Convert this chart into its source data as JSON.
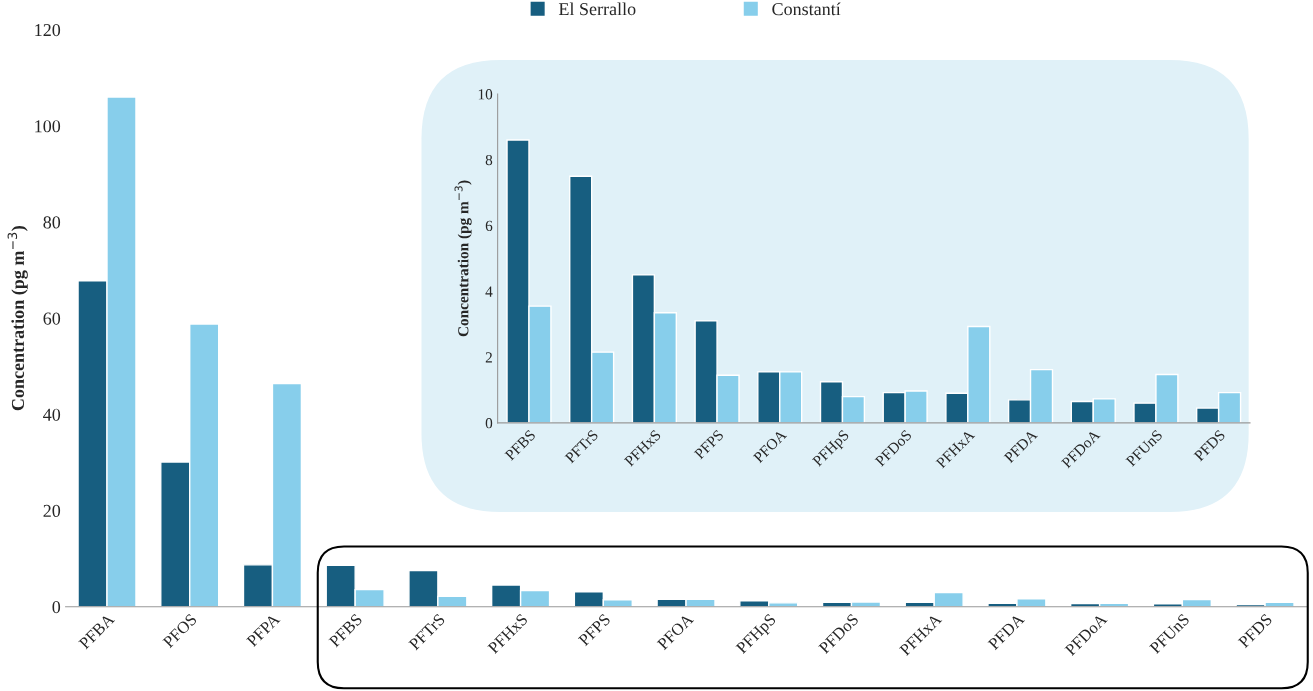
{
  "chart_data": [
    {
      "type": "bar",
      "ylabel": "Concentration (pg m$^{−3}$)",
      "categories": [
        "PFBA",
        "PFOS",
        "PFPA",
        "PFBS",
        "PFTrS",
        "PFHxS",
        "PFPS",
        "PFOA",
        "PFHpS",
        "PFDoS",
        "PFHxA",
        "PFDA",
        "PFDoA",
        "PFUnS",
        "PFDS"
      ],
      "series": [
        {
          "name": "El Serrallo",
          "color": "#175e80",
          "values": [
            67.8,
            30.1,
            8.7,
            8.6,
            7.5,
            4.5,
            3.1,
            1.55,
            1.25,
            0.92,
            0.9,
            0.7,
            0.65,
            0.6,
            0.45
          ]
        },
        {
          "name": "Constantí",
          "color": "#87ceeb",
          "values": [
            106,
            58.8,
            46.4,
            3.55,
            2.15,
            3.35,
            1.45,
            1.55,
            0.8,
            0.97,
            2.93,
            1.62,
            0.73,
            1.47,
            0.92
          ]
        }
      ],
      "ylim": [
        0,
        120
      ],
      "yticks": [
        0,
        20,
        40,
        60,
        80,
        100,
        120
      ],
      "legend": "top",
      "grid": false
    },
    {
      "type": "bar",
      "ylabel": "Concentration (pg m$^{−3}$)",
      "categories": [
        "PFBS",
        "PFTrS",
        "PFHxS",
        "PFPS",
        "PFOA",
        "PFHpS",
        "PFDoS",
        "PFHxA",
        "PFDA",
        "PFDoA",
        "PFUnS",
        "PFDS"
      ],
      "series": [
        {
          "color": "#175e80",
          "values": [
            8.6,
            7.5,
            4.5,
            3.1,
            1.55,
            1.25,
            0.92,
            0.9,
            0.7,
            0.65,
            0.6,
            0.45
          ]
        },
        {
          "color": "#87ceeb",
          "values": [
            3.55,
            2.15,
            3.35,
            1.45,
            1.55,
            0.8,
            0.97,
            2.93,
            1.62,
            0.73,
            1.47,
            0.92
          ]
        }
      ],
      "ylim": [
        0,
        10
      ],
      "yticks": [
        0,
        2,
        4,
        6,
        8,
        10
      ],
      "grid": false
    }
  ]
}
